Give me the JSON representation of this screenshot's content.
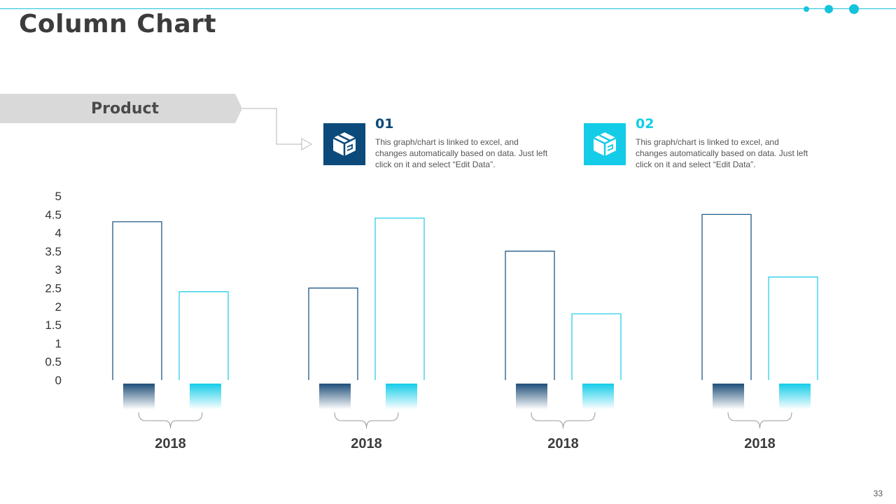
{
  "page": {
    "title": "Column Chart",
    "page_number": "33"
  },
  "banner": {
    "label": "Product"
  },
  "legend": [
    {
      "number": "01",
      "text": "This graph/chart is linked to excel, and changes automatically based on data. Just left click on it and select “Edit Data”.",
      "color": "#0b4a7a",
      "icon": "box-icon"
    },
    {
      "number": "02",
      "text": "This graph/chart is linked to excel, and changes automatically based on data. Just left click on it and select “Edit Data”.",
      "color": "#14cce8",
      "icon": "box-icon"
    }
  ],
  "colors": {
    "accent": "#17c3dc",
    "series1": "#0b4a7a",
    "series2": "#14cce8",
    "text": "#3c3c3c"
  },
  "chart_data": {
    "type": "bar",
    "categories": [
      "2018",
      "2018",
      "2018",
      "2018"
    ],
    "series": [
      {
        "values": [
          4.3,
          2.5,
          3.5,
          4.5
        ],
        "color": "#0b4a7a"
      },
      {
        "values": [
          2.4,
          4.4,
          1.8,
          2.8
        ],
        "color": "#14cce8"
      }
    ],
    "ylim": [
      0,
      5
    ],
    "yticks": [
      "0",
      "0.5",
      "1",
      "1.5",
      "2",
      "2.5",
      "3",
      "3.5",
      "4",
      "4.5",
      "5"
    ],
    "grid": false,
    "legend": "top"
  }
}
